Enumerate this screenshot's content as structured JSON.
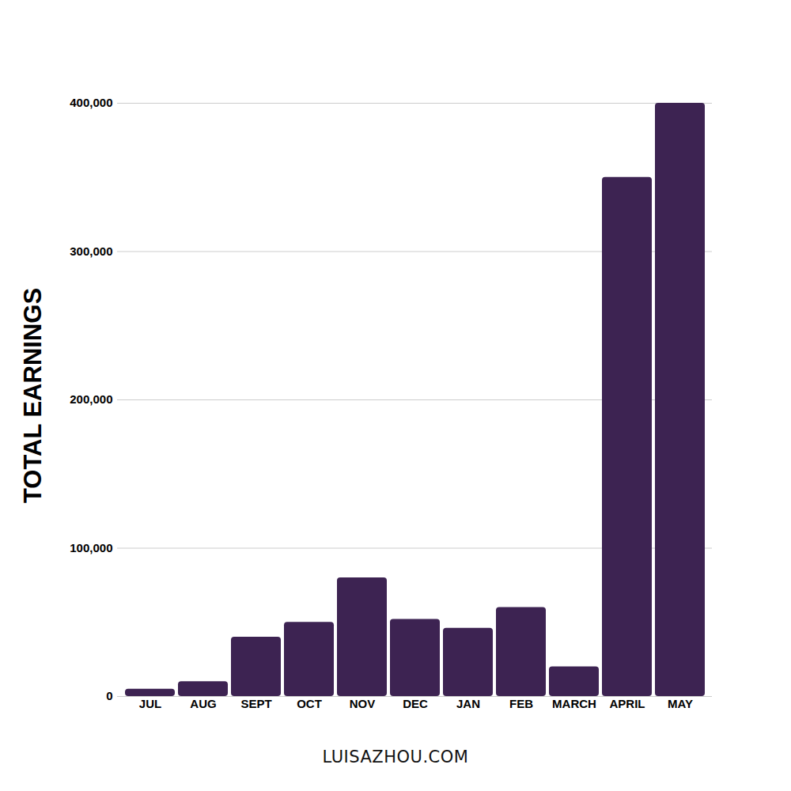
{
  "chart_data": {
    "type": "bar",
    "y_label": "TOTAL EARNINGS",
    "caption": "LUISAZHOU.COM",
    "categories": [
      "JUL",
      "AUG",
      "SEPT",
      "OCT",
      "NOV",
      "DEC",
      "JAN",
      "FEB",
      "MARCH",
      "APRIL",
      "MAY"
    ],
    "values": [
      5000,
      10000,
      40000,
      50000,
      80000,
      52000,
      46000,
      60000,
      20000,
      350000,
      400000
    ],
    "color": "#3d2352",
    "ylim": [
      0,
      400000
    ],
    "yticks": [
      0,
      {
        "value": 100000,
        "label": "100,000"
      },
      {
        "value": 200000,
        "label": "200,000"
      },
      {
        "value": 300000,
        "label": "300,000"
      },
      {
        "value": 400000,
        "label": "400,000"
      }
    ],
    "grid": true
  }
}
